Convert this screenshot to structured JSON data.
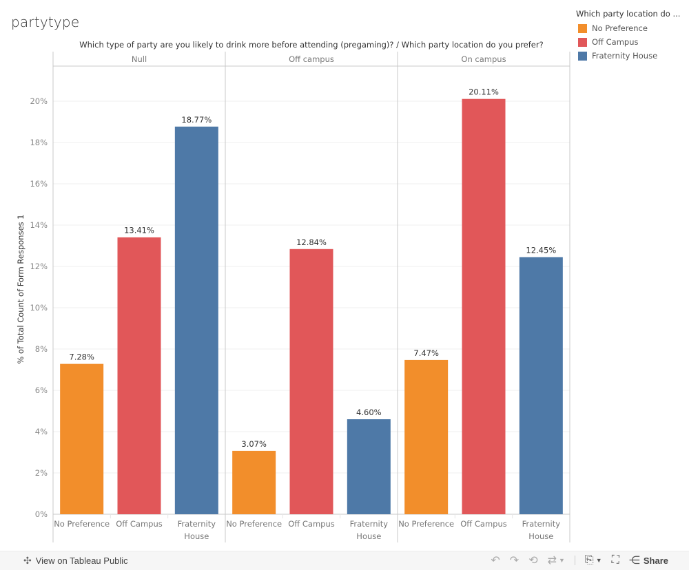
{
  "title": "partytype",
  "legend": {
    "title": "Which party location do ...",
    "items": [
      {
        "label": "No Preference",
        "color": "#F28E2B"
      },
      {
        "label": "Off Campus",
        "color": "#E15759"
      },
      {
        "label": "Fraternity House",
        "color": "#4E79A7"
      }
    ]
  },
  "footer": {
    "view_label": "View on Tableau Public",
    "share_label": "Share",
    "icons": [
      "undo-icon",
      "redo-icon",
      "revert-icon",
      "refresh-icon",
      "download-icon",
      "fullscreen-icon",
      "share-icon"
    ]
  },
  "chart_data": {
    "type": "bar",
    "title": "partytype",
    "column_header": "Which type of party are you likely to drink more before attending (pregaming)?  /  Which party location do you prefer?",
    "ylabel": "% of Total Count of Form Responses 1",
    "xlabel": "",
    "ylim": [
      0,
      21.5
    ],
    "yticks": [
      0,
      2,
      4,
      6,
      8,
      10,
      12,
      14,
      16,
      18,
      20
    ],
    "ytick_labels": [
      "0%",
      "2%",
      "4%",
      "6%",
      "8%",
      "10%",
      "12%",
      "14%",
      "16%",
      "18%",
      "20%"
    ],
    "grid": true,
    "legend_position": "top-right",
    "panes": [
      "Null",
      "Off campus",
      "On campus"
    ],
    "categories": [
      "No Preference",
      "Off Campus",
      "Fraternity House"
    ],
    "category_labels": [
      [
        "No Preference"
      ],
      [
        "Off Campus"
      ],
      [
        "Fraternity",
        "House"
      ]
    ],
    "colors": [
      "#F28E2B",
      "#E15759",
      "#4E79A7"
    ],
    "values": [
      [
        7.28,
        13.41,
        18.77
      ],
      [
        3.07,
        12.84,
        4.6
      ],
      [
        7.47,
        20.11,
        12.45
      ]
    ],
    "value_labels": [
      [
        "7.28%",
        "13.41%",
        "18.77%"
      ],
      [
        "3.07%",
        "12.84%",
        "4.60%"
      ],
      [
        "7.47%",
        "20.11%",
        "12.45%"
      ]
    ]
  }
}
